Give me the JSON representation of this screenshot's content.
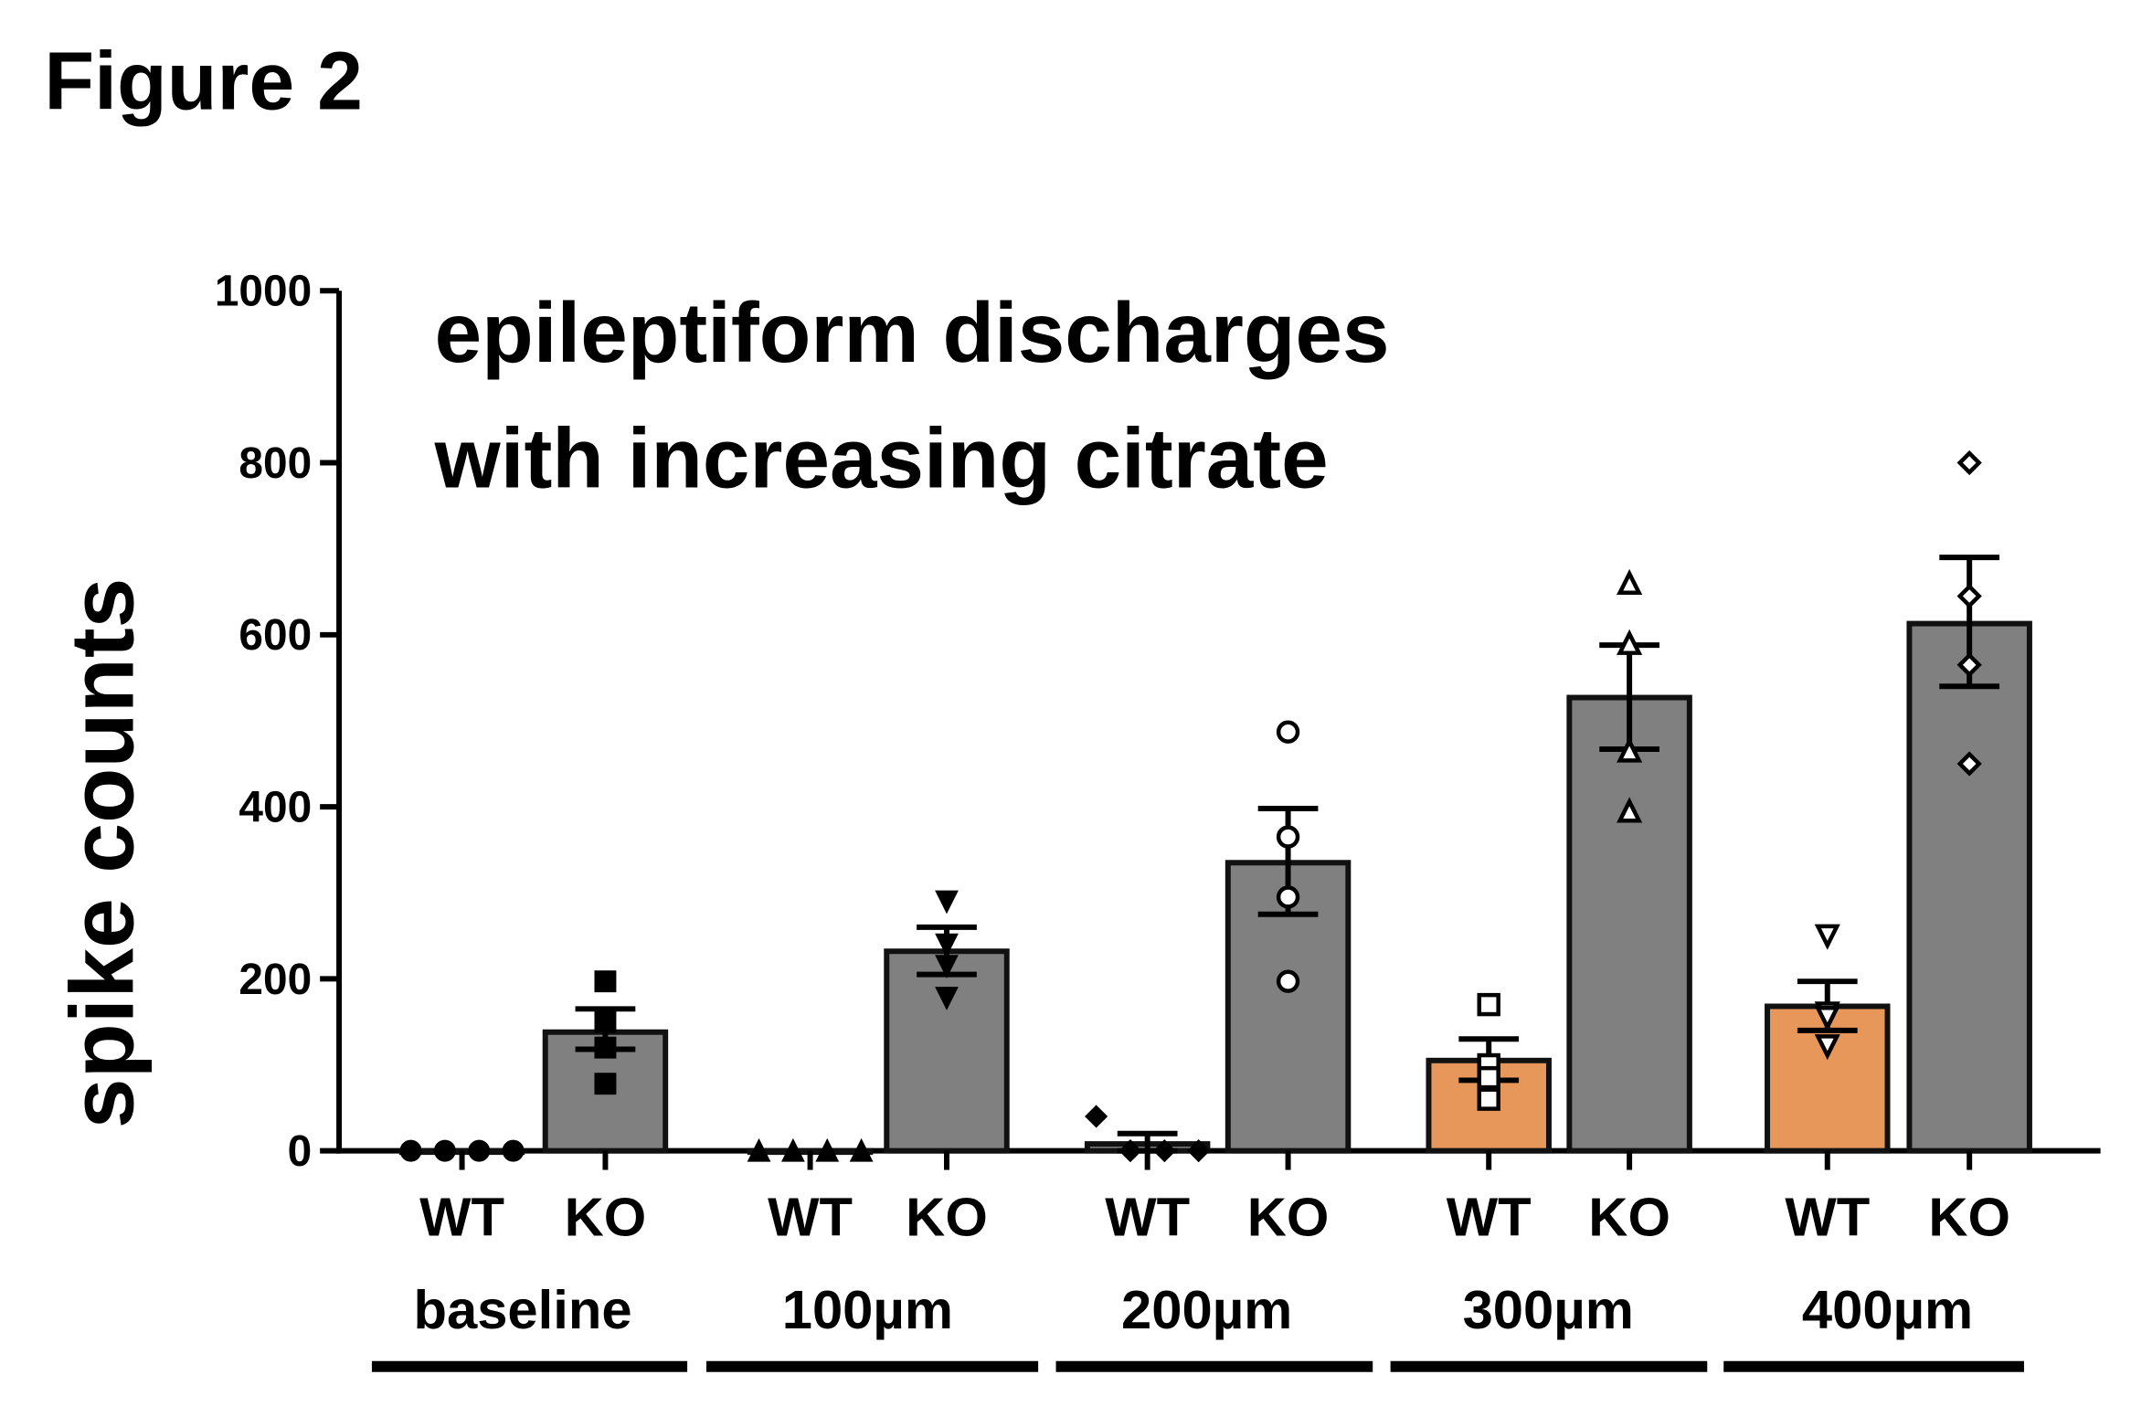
{
  "figure_label": "Figure 2",
  "chart_data": {
    "type": "bar",
    "title": [
      "epileptiform discharges",
      "with increasing citrate"
    ],
    "ylabel": "spike counts",
    "xlabel": "",
    "ylim": [
      0,
      1000
    ],
    "yticks": [
      "0",
      "200",
      "400",
      "600",
      "800",
      "1000"
    ],
    "grid": false,
    "colors": {
      "KO": "#808080",
      "WT_low": "#808080",
      "WT_high": "#E8975A"
    },
    "groups": [
      {
        "label": "baseline",
        "bars": [
          {
            "label": "WT",
            "mean": 0,
            "sem": [
              0,
              0
            ],
            "points": [
              0,
              0,
              0,
              0
            ],
            "marker": "filled-circle",
            "color": "#808080"
          },
          {
            "label": "KO",
            "mean": 138,
            "sem": [
              118,
              165
            ],
            "points": [
              197,
              150,
              120,
              78
            ],
            "marker": "filled-square",
            "color": "#808080"
          }
        ]
      },
      {
        "label": "100µm",
        "bars": [
          {
            "label": "WT",
            "mean": 0,
            "sem": [
              0,
              0
            ],
            "points": [
              0,
              0,
              0,
              0
            ],
            "marker": "filled-triangle",
            "color": "#808080"
          },
          {
            "label": "KO",
            "mean": 232,
            "sem": [
              205,
              260
            ],
            "points": [
              290,
              240,
              215,
              178
            ],
            "marker": "filled-inverted-triangle",
            "color": "#808080"
          }
        ]
      },
      {
        "label": "200µm",
        "bars": [
          {
            "label": "WT",
            "mean": 8,
            "sem": [
              0,
              20
            ],
            "points": [
              40,
              0,
              0,
              0
            ],
            "marker": "filled-diamond",
            "color": "#808080"
          },
          {
            "label": "KO",
            "mean": 335,
            "sem": [
              275,
              398
            ],
            "points": [
              487,
              365,
              295,
              197
            ],
            "marker": "open-circle",
            "color": "#808080"
          }
        ]
      },
      {
        "label": "300µm",
        "bars": [
          {
            "label": "WT",
            "mean": 105,
            "sem": [
              82,
              130
            ],
            "points": [
              170,
              100,
              85,
              60
            ],
            "marker": "open-square",
            "color": "#E8975A"
          },
          {
            "label": "KO",
            "mean": 527,
            "sem": [
              467,
              588
            ],
            "points": [
              660,
              590,
              465,
              395
            ],
            "marker": "open-triangle",
            "color": "#808080"
          }
        ]
      },
      {
        "label": "400µm",
        "bars": [
          {
            "label": "WT",
            "mean": 168,
            "sem": [
              140,
              197
            ],
            "points": [
              250,
              160,
              155,
              122
            ],
            "marker": "open-inverted-triangle",
            "color": "#E8975A"
          },
          {
            "label": "KO",
            "mean": 613,
            "sem": [
              540,
              690
            ],
            "points": [
              800,
              645,
              565,
              450
            ],
            "marker": "open-diamond",
            "color": "#808080"
          }
        ]
      }
    ]
  }
}
